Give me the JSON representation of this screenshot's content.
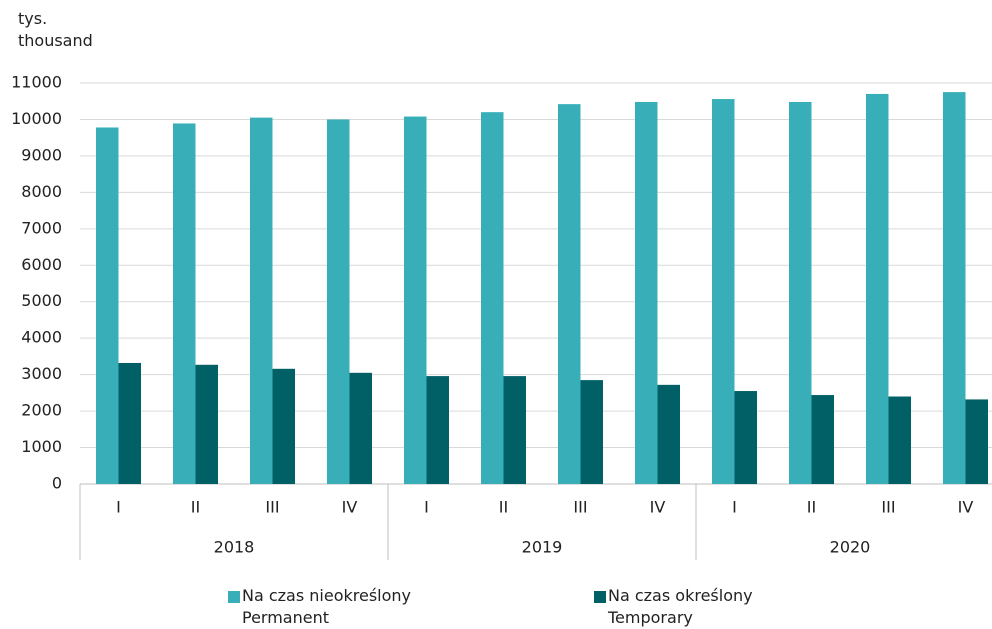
{
  "chart_data": {
    "type": "bar",
    "y_label": "tys.\nthousand",
    "groups": [
      {
        "label": "2018",
        "categories": [
          "I",
          "II",
          "III",
          "IV"
        ]
      },
      {
        "label": "2019",
        "categories": [
          "I",
          "II",
          "III",
          "IV"
        ]
      },
      {
        "label": "2020",
        "categories": [
          "I",
          "II",
          "III",
          "IV"
        ]
      }
    ],
    "series": [
      {
        "name": "Na czas nieokreślony\nPermanent",
        "color": "#38afb8",
        "values": [
          9780,
          9890,
          10050,
          10000,
          10080,
          10200,
          10420,
          10480,
          10560,
          10480,
          10700,
          10750
        ]
      },
      {
        "name": "Na czas określony\nTemporary",
        "color": "#006066",
        "values": [
          3320,
          3270,
          3160,
          3050,
          2960,
          2960,
          2850,
          2720,
          2550,
          2440,
          2400,
          2320
        ]
      }
    ],
    "ylim": [
      0,
      11000
    ],
    "yticks": [
      0,
      1000,
      2000,
      3000,
      4000,
      5000,
      6000,
      7000,
      8000,
      9000,
      10000,
      11000
    ],
    "grid": true
  }
}
